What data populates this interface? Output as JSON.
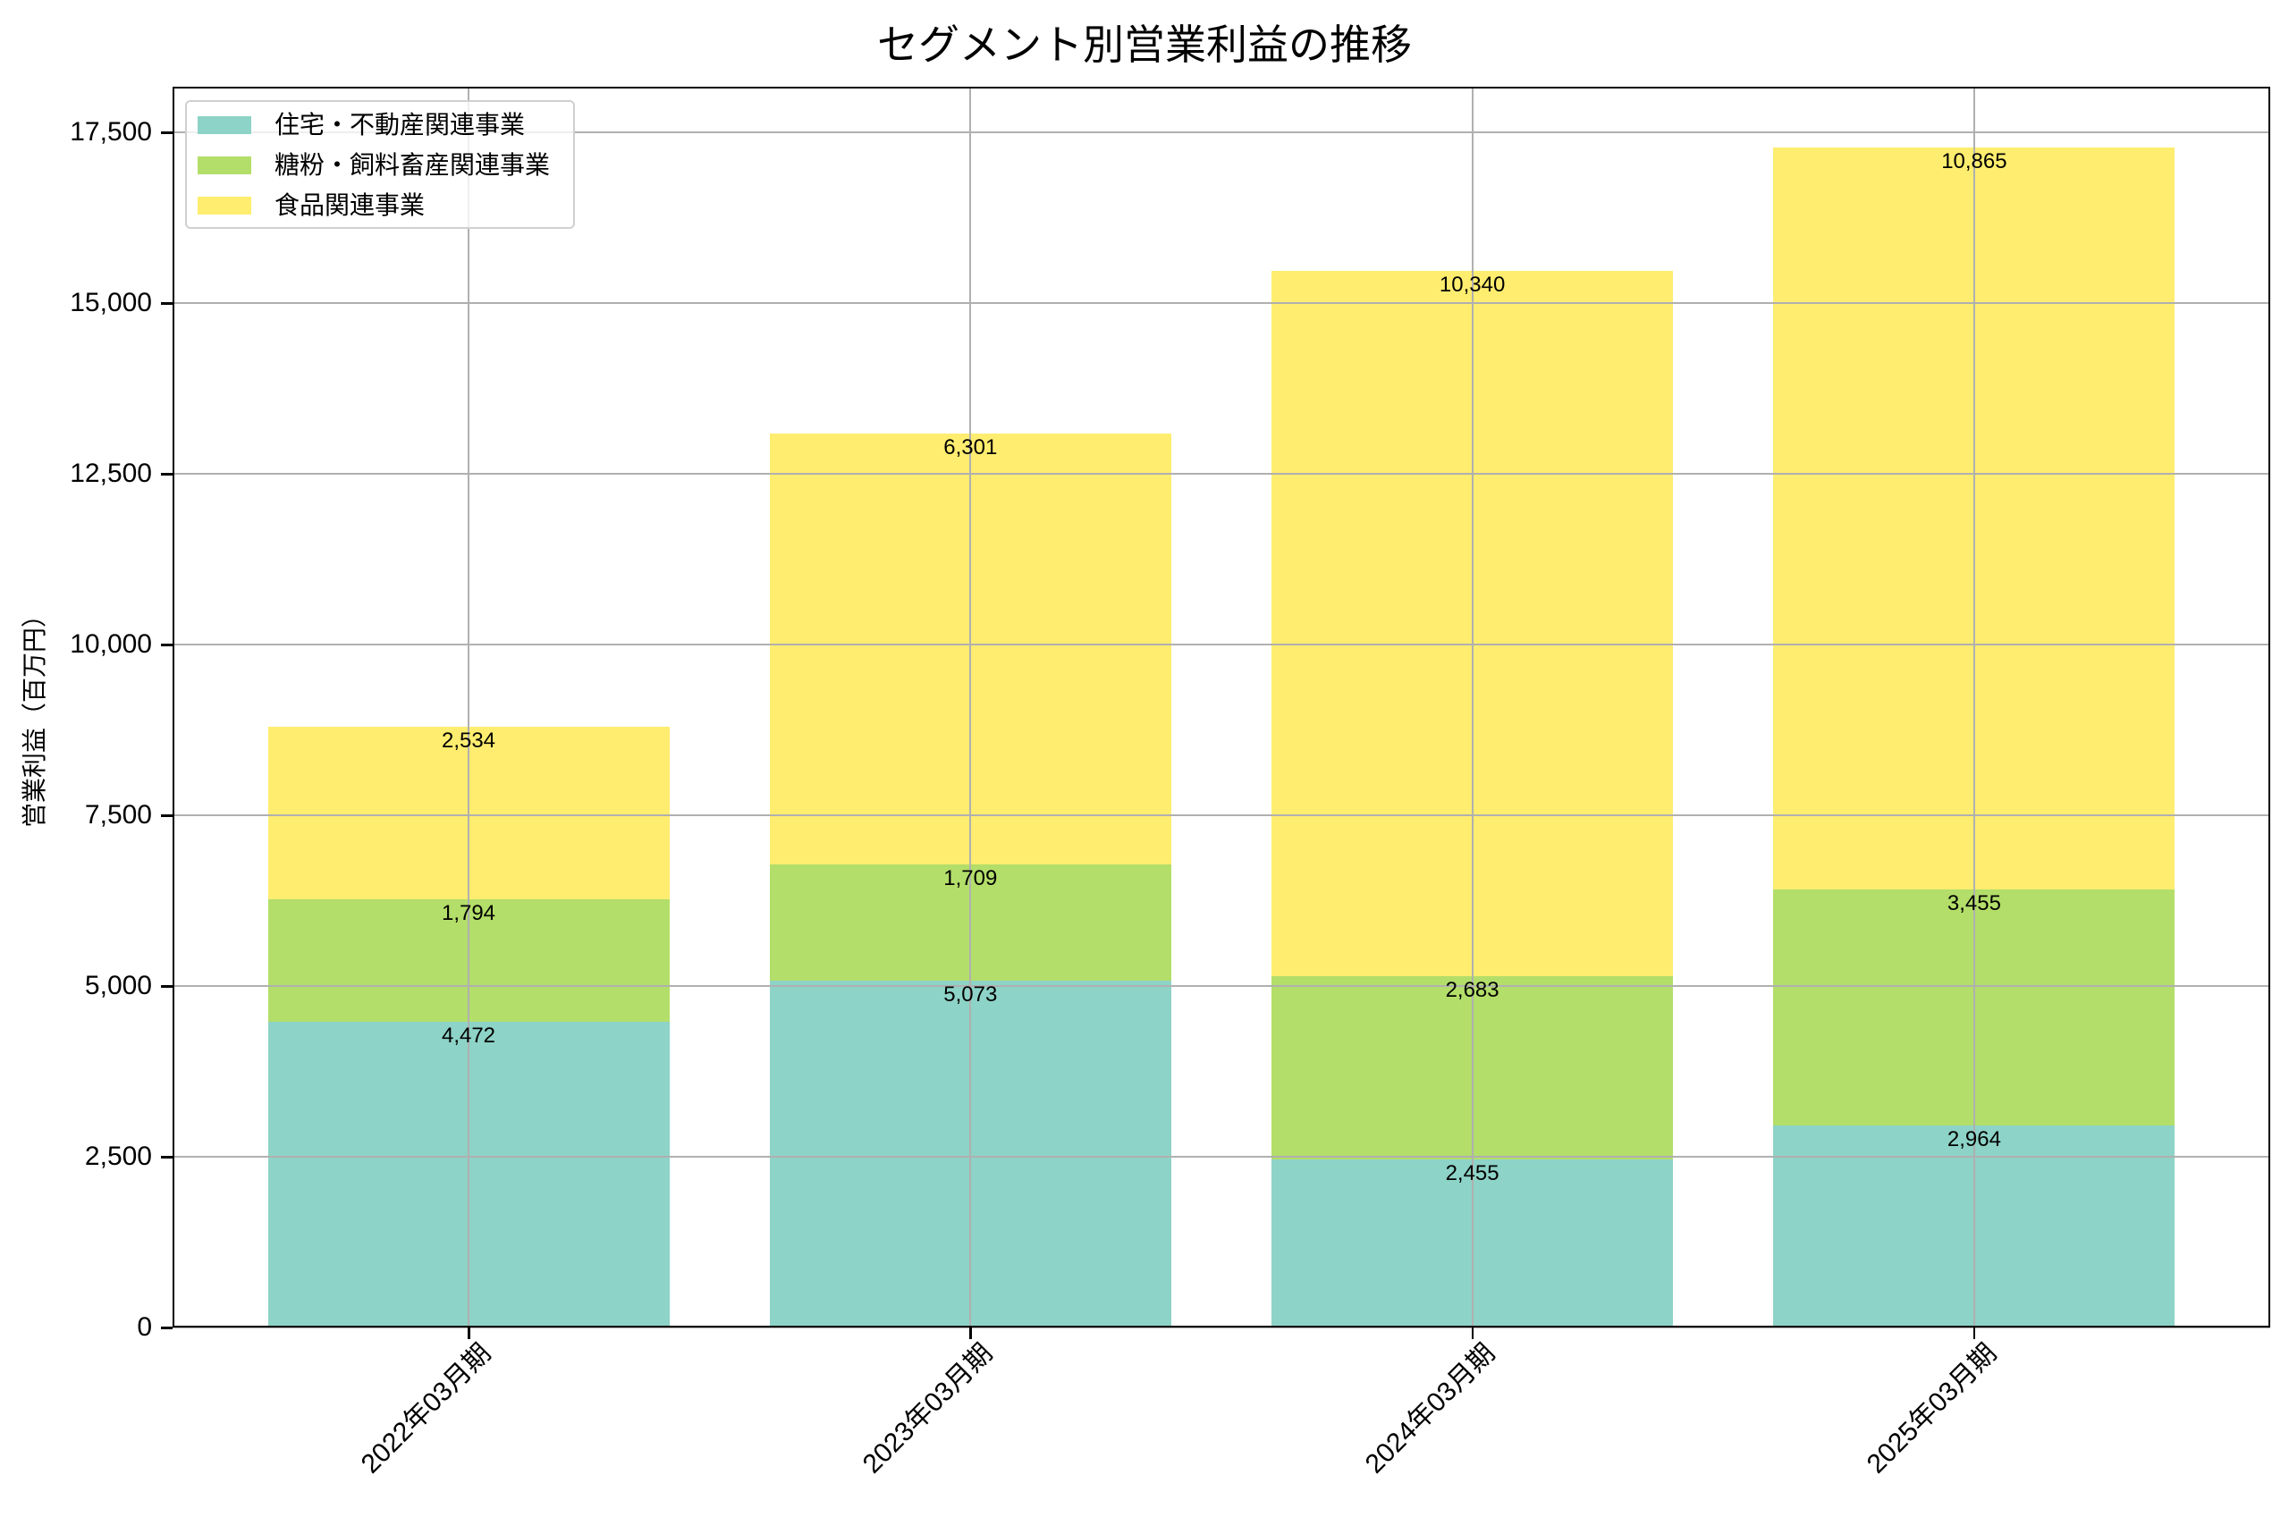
{
  "chart_data": {
    "type": "bar",
    "stacked": true,
    "title": "セグメント別営業利益の推移",
    "xlabel": "",
    "ylabel": "営業利益（百万円）",
    "categories": [
      "2022年03月期",
      "2023年03月期",
      "2024年03月期",
      "2025年03月期"
    ],
    "series": [
      {
        "name": "住宅・不動産関連事業",
        "color": "#8dd3c7",
        "values": [
          4472,
          5073,
          2455,
          2964
        ],
        "labels": [
          "4,472",
          "5,073",
          "2,455",
          "2,964"
        ]
      },
      {
        "name": "糖粉・飼料畜産関連事業",
        "color": "#b3de69",
        "values": [
          1794,
          1709,
          2683,
          3455
        ],
        "labels": [
          "1,794",
          "1,709",
          "2,683",
          "3,455"
        ]
      },
      {
        "name": "食品関連事業",
        "color": "#ffed6f",
        "values": [
          2534,
          6301,
          10340,
          10865
        ],
        "labels": [
          "2,534",
          "6,301",
          "10,340",
          "10,865"
        ]
      }
    ],
    "yticks": [
      0,
      2500,
      5000,
      7500,
      10000,
      12500,
      15000,
      17500
    ],
    "ytick_labels": [
      "0",
      "2,500",
      "5,000",
      "7,500",
      "10,000",
      "12,500",
      "15,000",
      "17,500"
    ],
    "ylim": [
      0,
      18168
    ],
    "grid": true,
    "legend_position": "upper left",
    "data_labels": true
  }
}
